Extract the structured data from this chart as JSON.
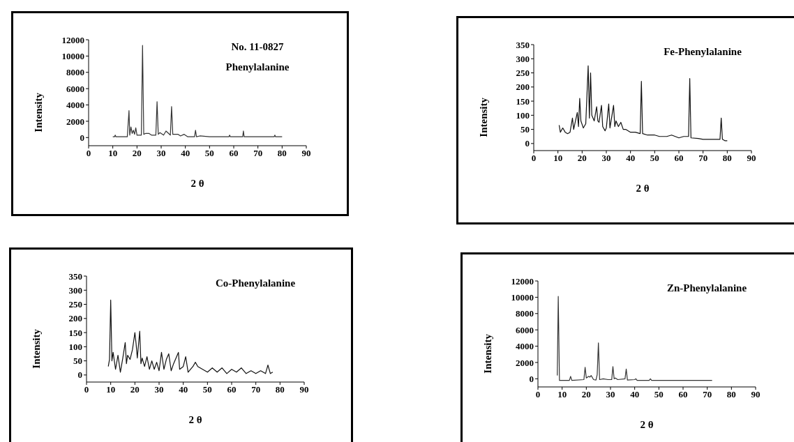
{
  "chart_data": [
    {
      "type": "line",
      "title": "No. 11-0827",
      "subtitle": "Phenylalanine",
      "xlabel": "2 θ",
      "ylabel": "Intensity",
      "color": "#333333",
      "xlim": [
        0,
        90
      ],
      "ylim": [
        -1000,
        12000
      ],
      "xticks": [
        0,
        10,
        20,
        30,
        40,
        50,
        60,
        70,
        80,
        90
      ],
      "yticks": [
        0,
        2000,
        4000,
        6000,
        8000,
        10000,
        12000
      ],
      "x": [
        10,
        10.7,
        11,
        11.3,
        16,
        16.7,
        17,
        17.5,
        18,
        18.5,
        19,
        19.5,
        20,
        21.8,
        22.3,
        22.8,
        23.5,
        25,
        26,
        27.8,
        28.3,
        28.8,
        29.5,
        31,
        32,
        33.8,
        34.3,
        34.8,
        37,
        38,
        39.5,
        41,
        43.8,
        44.2,
        44.6,
        46,
        50,
        58,
        58.3,
        58.6,
        63.7,
        64,
        64.3,
        70,
        76.7,
        77,
        77.3,
        80
      ],
      "values": [
        100,
        100,
        300,
        100,
        100,
        3300,
        300,
        1300,
        500,
        900,
        400,
        1200,
        300,
        300,
        11300,
        400,
        500,
        500,
        300,
        300,
        4400,
        400,
        600,
        300,
        800,
        300,
        3800,
        400,
        400,
        200,
        400,
        100,
        100,
        900,
        100,
        200,
        100,
        100,
        300,
        100,
        100,
        800,
        100,
        100,
        100,
        300,
        100,
        100
      ]
    },
    {
      "type": "line",
      "title": "Fe-Phenylalanine",
      "xlabel": "2 θ",
      "ylabel": "Intensity",
      "color": "#111111",
      "xlim": [
        0,
        90
      ],
      "ylim": [
        -25,
        350
      ],
      "xticks": [
        0,
        10,
        20,
        30,
        40,
        50,
        60,
        70,
        80,
        90
      ],
      "yticks": [
        0,
        50,
        100,
        150,
        200,
        250,
        300,
        350
      ],
      "x": [
        10.5,
        11,
        12,
        13,
        14,
        15,
        16,
        16.5,
        17,
        18,
        18.5,
        19,
        19.5,
        20.5,
        21.5,
        22.5,
        23,
        23.5,
        24,
        25,
        26,
        26.5,
        27,
        28,
        28.5,
        29.5,
        30,
        31,
        31.5,
        33,
        33.5,
        34,
        35,
        36,
        37,
        38,
        40,
        42,
        44,
        44.5,
        45,
        47,
        50,
        52,
        55,
        57,
        60,
        62,
        64,
        64.5,
        65,
        68,
        70,
        72,
        75,
        77,
        77.5,
        78,
        79,
        80
      ],
      "values": [
        65,
        40,
        55,
        40,
        35,
        40,
        90,
        50,
        70,
        110,
        60,
        160,
        80,
        55,
        70,
        275,
        90,
        250,
        100,
        80,
        130,
        80,
        75,
        135,
        60,
        45,
        55,
        140,
        55,
        135,
        60,
        80,
        60,
        75,
        50,
        50,
        40,
        40,
        35,
        220,
        35,
        30,
        30,
        25,
        25,
        30,
        20,
        25,
        25,
        230,
        20,
        18,
        15,
        15,
        15,
        15,
        90,
        15,
        10,
        10
      ]
    },
    {
      "type": "line",
      "title": "Co-Phenylalanine",
      "xlabel": "2 θ",
      "ylabel": "Intensity",
      "color": "#111111",
      "xlim": [
        0,
        90
      ],
      "ylim": [
        -25,
        350
      ],
      "xticks": [
        0,
        10,
        20,
        30,
        40,
        50,
        60,
        70,
        80,
        90
      ],
      "yticks": [
        0,
        50,
        100,
        150,
        200,
        250,
        300,
        350
      ],
      "x": [
        9,
        9.5,
        10,
        10.5,
        11,
        12,
        13,
        14,
        15,
        16,
        16.5,
        17,
        18,
        19,
        20,
        20.5,
        21,
        22,
        22.5,
        23,
        24,
        25,
        26,
        27,
        28,
        29,
        30,
        31,
        32,
        33,
        34,
        35,
        36,
        38,
        38.5,
        40,
        41,
        42,
        44,
        45,
        46,
        48,
        50,
        52,
        54,
        56,
        58,
        60,
        62,
        64,
        66,
        68,
        70,
        72,
        74,
        75,
        76,
        77
      ],
      "values": [
        30,
        55,
        265,
        50,
        80,
        20,
        70,
        10,
        60,
        115,
        40,
        70,
        55,
        90,
        150,
        110,
        60,
        155,
        40,
        60,
        30,
        65,
        20,
        50,
        20,
        45,
        15,
        80,
        20,
        55,
        75,
        15,
        40,
        80,
        20,
        30,
        65,
        10,
        30,
        45,
        30,
        20,
        10,
        25,
        10,
        25,
        5,
        20,
        10,
        25,
        5,
        15,
        5,
        15,
        5,
        35,
        5,
        10
      ]
    },
    {
      "type": "line",
      "title": "Zn-Phenylalanine",
      "xlabel": "2 θ",
      "ylabel": "Intensity",
      "color": "#333333",
      "xlim": [
        0,
        90
      ],
      "ylim": [
        -1000,
        12000
      ],
      "xticks": [
        0,
        10,
        20,
        30,
        40,
        50,
        60,
        70,
        80,
        90
      ],
      "yticks": [
        0,
        2000,
        4000,
        6000,
        8000,
        10000,
        12000
      ],
      "x": [
        8,
        8.4,
        8.9,
        13,
        13.5,
        14,
        19,
        19.5,
        20,
        21,
        21.5,
        22,
        23,
        24,
        24.5,
        25,
        25.5,
        27,
        29,
        30.5,
        31,
        31.5,
        32,
        33,
        36,
        36.5,
        37,
        40,
        40.5,
        41,
        46,
        46.5,
        47,
        72
      ],
      "values": [
        400,
        10100,
        -200,
        -200,
        300,
        -200,
        -100,
        1400,
        100,
        300,
        200,
        400,
        -100,
        -150,
        500,
        4400,
        -100,
        0,
        -100,
        -100,
        1500,
        0,
        100,
        -100,
        0,
        1200,
        -150,
        -100,
        0,
        -200,
        -200,
        0,
        -200,
        -200
      ]
    }
  ]
}
